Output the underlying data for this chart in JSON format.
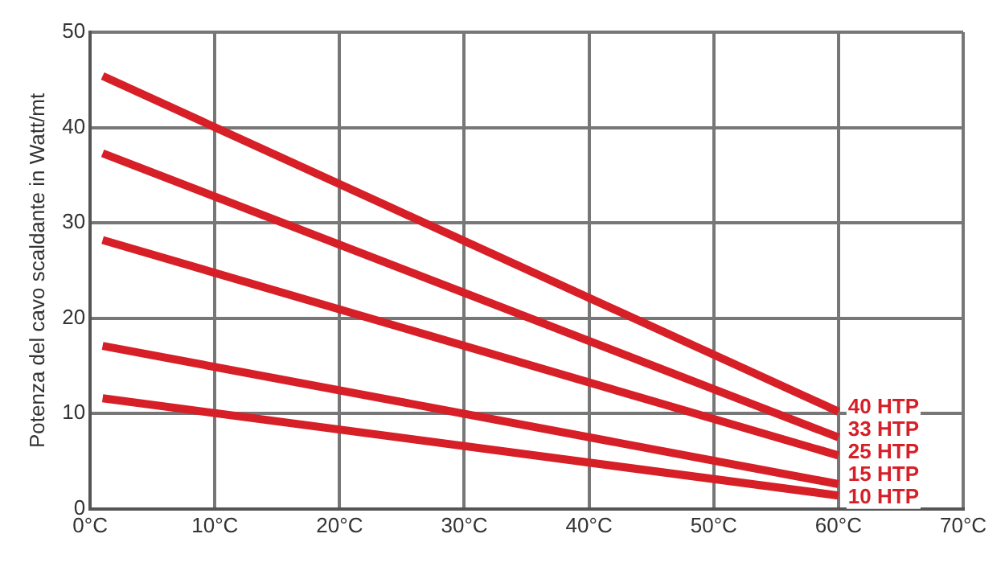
{
  "chart_data": {
    "type": "line",
    "ylabel": "Potenza del cavo scaldante in Watt/mt",
    "x": [
      1,
      60
    ],
    "series": [
      {
        "name": "40 HTP",
        "color": "#d71f27",
        "values": [
          45.4,
          10.2
        ]
      },
      {
        "name": "33 HTP",
        "color": "#d71f27",
        "values": [
          37.3,
          7.5
        ]
      },
      {
        "name": "25 HTP",
        "color": "#d71f27",
        "values": [
          28.2,
          5.6
        ]
      },
      {
        "name": "15 HTP",
        "color": "#d71f27",
        "values": [
          17.1,
          2.6
        ]
      },
      {
        "name": "10 HTP",
        "color": "#d71f27",
        "values": [
          11.6,
          1.4
        ]
      }
    ],
    "xlim": [
      0,
      70
    ],
    "ylim": [
      0,
      50
    ],
    "xticks": [
      {
        "value": 0,
        "label": "0°C"
      },
      {
        "value": 10,
        "label": "10°C"
      },
      {
        "value": 20,
        "label": "20°C"
      },
      {
        "value": 30,
        "label": "30°C"
      },
      {
        "value": 40,
        "label": "40°C"
      },
      {
        "value": 50,
        "label": "50°C"
      },
      {
        "value": 60,
        "label": "60°C"
      },
      {
        "value": 70,
        "label": "70°C"
      }
    ],
    "yticks": [
      0,
      10,
      20,
      30,
      40,
      50
    ],
    "grid": true,
    "legend": false,
    "marker": "none",
    "line_style": "solid"
  }
}
